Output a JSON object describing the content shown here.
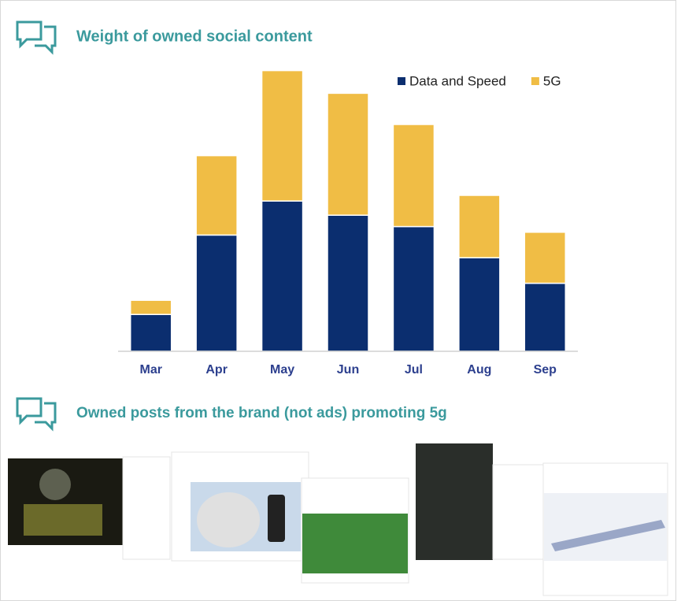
{
  "chart_data": {
    "type": "bar",
    "stacked": true,
    "title": "Weight of owned social content",
    "categories": [
      "Mar",
      "Apr",
      "May",
      "Jun",
      "Jul",
      "Aug",
      "Sep"
    ],
    "series": [
      {
        "name": "Data and Speed",
        "color": "#0b2e6f",
        "values": [
          13,
          41,
          53,
          48,
          44,
          33,
          24
        ]
      },
      {
        "name": "5G",
        "color": "#f0bd45",
        "values": [
          5,
          28,
          46,
          43,
          36,
          22,
          18
        ]
      }
    ],
    "ylim": [
      0,
      100
    ],
    "legend": "top-right"
  },
  "posts": {
    "title": "Owned posts from the brand (not ads) promoting 5g"
  }
}
